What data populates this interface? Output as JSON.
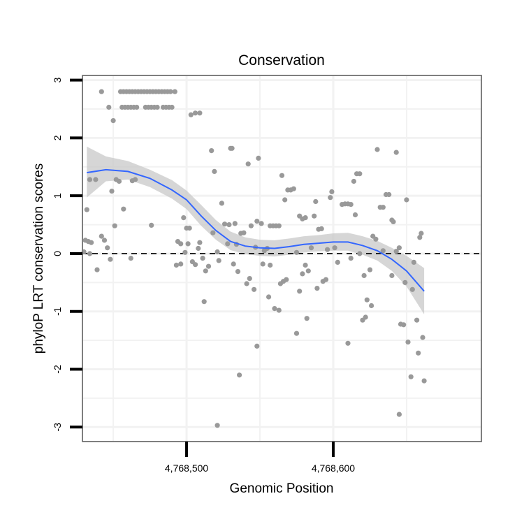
{
  "chart_data": {
    "type": "scatter",
    "title": "Conservation",
    "xlabel": "Genomic Position",
    "ylabel": "phyloP LRT conservation scores",
    "xlim": [
      4768429,
      4768701
    ],
    "ylim": [
      -3.25,
      3.08
    ],
    "xticks": [
      4768500,
      4768600
    ],
    "xtick_labels": [
      "4,768,500",
      "4,768,600"
    ],
    "yticks": [
      3,
      2,
      1,
      0,
      -1,
      -2,
      -3
    ],
    "ytick_labels": [
      "3",
      "2",
      "1",
      "0",
      "-1",
      "-2",
      "-3"
    ],
    "minor_xticks": [
      4768450,
      4768550,
      4768650
    ],
    "minor_yticks": [
      2.5,
      1.5,
      0.5,
      -0.5,
      -1.5,
      -2.5
    ],
    "grid": true,
    "reference_line": {
      "y": 0,
      "style": "dashed"
    },
    "colors": {
      "points": "#999999",
      "smooth": "#3366FF",
      "band": "#C8C8C8",
      "panel_border": "#7f7f7f",
      "grid": "#f2f2f2"
    },
    "points": [
      {
        "x": 4768442,
        "y": 2.8
      },
      {
        "x": 4768447,
        "y": 2.53
      },
      {
        "x": 4768450,
        "y": 2.3
      },
      {
        "x": 4768455,
        "y": 2.8
      },
      {
        "x": 4768457,
        "y": 2.8
      },
      {
        "x": 4768459,
        "y": 2.8
      },
      {
        "x": 4768461,
        "y": 2.8
      },
      {
        "x": 4768463,
        "y": 2.8
      },
      {
        "x": 4768465,
        "y": 2.8
      },
      {
        "x": 4768467,
        "y": 2.8
      },
      {
        "x": 4768469,
        "y": 2.8
      },
      {
        "x": 4768471,
        "y": 2.8
      },
      {
        "x": 4768473,
        "y": 2.8
      },
      {
        "x": 4768475,
        "y": 2.8
      },
      {
        "x": 4768477,
        "y": 2.8
      },
      {
        "x": 4768479,
        "y": 2.8
      },
      {
        "x": 4768481,
        "y": 2.8
      },
      {
        "x": 4768483,
        "y": 2.8
      },
      {
        "x": 4768485,
        "y": 2.8
      },
      {
        "x": 4768487,
        "y": 2.8
      },
      {
        "x": 4768489,
        "y": 2.8
      },
      {
        "x": 4768492,
        "y": 2.8
      },
      {
        "x": 4768456,
        "y": 2.53
      },
      {
        "x": 4768458,
        "y": 2.53
      },
      {
        "x": 4768460,
        "y": 2.53
      },
      {
        "x": 4768462,
        "y": 2.53
      },
      {
        "x": 4768464,
        "y": 2.53
      },
      {
        "x": 4768466,
        "y": 2.53
      },
      {
        "x": 4768472,
        "y": 2.53
      },
      {
        "x": 4768474,
        "y": 2.53
      },
      {
        "x": 4768476,
        "y": 2.53
      },
      {
        "x": 4768478,
        "y": 2.53
      },
      {
        "x": 4768480,
        "y": 2.53
      },
      {
        "x": 4768484,
        "y": 2.53
      },
      {
        "x": 4768486,
        "y": 2.53
      },
      {
        "x": 4768488,
        "y": 2.53
      },
      {
        "x": 4768490,
        "y": 2.53
      },
      {
        "x": 4768503,
        "y": 2.4
      },
      {
        "x": 4768506,
        "y": 2.43
      },
      {
        "x": 4768509,
        "y": 2.43
      },
      {
        "x": 4768432,
        "y": 0.76
      },
      {
        "x": 4768434,
        "y": 1.28
      },
      {
        "x": 4768438,
        "y": 1.28
      },
      {
        "x": 4768452,
        "y": 1.28
      },
      {
        "x": 4768454,
        "y": 1.25
      },
      {
        "x": 4768457,
        "y": 0.77
      },
      {
        "x": 4768463,
        "y": 1.26
      },
      {
        "x": 4768465,
        "y": 1.28
      },
      {
        "x": 4768449,
        "y": 1.08
      },
      {
        "x": 4768431,
        "y": 0.23
      },
      {
        "x": 4768433,
        "y": 0.21
      },
      {
        "x": 4768435,
        "y": 0.19
      },
      {
        "x": 4768430,
        "y": 0.03
      },
      {
        "x": 4768434,
        "y": 0.0
      },
      {
        "x": 4768439,
        "y": -0.28
      },
      {
        "x": 4768442,
        "y": 0.3
      },
      {
        "x": 4768444,
        "y": 0.23
      },
      {
        "x": 4768446,
        "y": 0.1
      },
      {
        "x": 4768448,
        "y": -0.1
      },
      {
        "x": 4768451,
        "y": 0.48
      },
      {
        "x": 4768462,
        "y": -0.08
      },
      {
        "x": 4768476,
        "y": 0.49
      },
      {
        "x": 4768494,
        "y": 0.21
      },
      {
        "x": 4768496,
        "y": 0.17
      },
      {
        "x": 4768498,
        "y": 0.62
      },
      {
        "x": 4768500,
        "y": 0.44
      },
      {
        "x": 4768501,
        "y": 0.17
      },
      {
        "x": 4768502,
        "y": 0.44
      },
      {
        "x": 4768499,
        "y": 0.02
      },
      {
        "x": 4768493,
        "y": -0.2
      },
      {
        "x": 4768496,
        "y": -0.18
      },
      {
        "x": 4768504,
        "y": -0.14
      },
      {
        "x": 4768506,
        "y": -0.19
      },
      {
        "x": 4768508,
        "y": 0.09
      },
      {
        "x": 4768509,
        "y": 0.19
      },
      {
        "x": 4768511,
        "y": -0.08
      },
      {
        "x": 4768513,
        "y": -0.3
      },
      {
        "x": 4768515,
        "y": -0.22
      },
      {
        "x": 4768512,
        "y": -0.83
      },
      {
        "x": 4768517,
        "y": 1.78
      },
      {
        "x": 4768519,
        "y": 1.42
      },
      {
        "x": 4768518,
        "y": 0.36
      },
      {
        "x": 4768521,
        "y": 0.03
      },
      {
        "x": 4768522,
        "y": -0.12
      },
      {
        "x": 4768524,
        "y": 0.87
      },
      {
        "x": 4768526,
        "y": 0.51
      },
      {
        "x": 4768528,
        "y": 0.17
      },
      {
        "x": 4768529,
        "y": 0.5
      },
      {
        "x": 4768530,
        "y": 1.82
      },
      {
        "x": 4768531,
        "y": 1.82
      },
      {
        "x": 4768533,
        "y": 0.52
      },
      {
        "x": 4768534,
        "y": 0.16
      },
      {
        "x": 4768535,
        "y": -0.31
      },
      {
        "x": 4768537,
        "y": 0.35
      },
      {
        "x": 4768539,
        "y": 0.36
      },
      {
        "x": 4768541,
        "y": -0.52
      },
      {
        "x": 4768542,
        "y": 1.55
      },
      {
        "x": 4768543,
        "y": -0.43
      },
      {
        "x": 4768544,
        "y": 0.48
      },
      {
        "x": 4768546,
        "y": -0.62
      },
      {
        "x": 4768547,
        "y": 0.11
      },
      {
        "x": 4768548,
        "y": 0.56
      },
      {
        "x": 4768549,
        "y": 1.65
      },
      {
        "x": 4768551,
        "y": 0.52
      },
      {
        "x": 4768552,
        "y": -0.18
      },
      {
        "x": 4768553,
        "y": 0.05
      },
      {
        "x": 4768555,
        "y": 0.09
      },
      {
        "x": 4768557,
        "y": 0.48
      },
      {
        "x": 4768559,
        "y": 0.48
      },
      {
        "x": 4768561,
        "y": 0.48
      },
      {
        "x": 4768563,
        "y": 0.48
      },
      {
        "x": 4768565,
        "y": 1.35
      },
      {
        "x": 4768567,
        "y": 0.93
      },
      {
        "x": 4768569,
        "y": 1.1
      },
      {
        "x": 4768571,
        "y": 1.1
      },
      {
        "x": 4768573,
        "y": 1.12
      },
      {
        "x": 4768564,
        "y": -0.52
      },
      {
        "x": 4768566,
        "y": -0.48
      },
      {
        "x": 4768568,
        "y": -0.45
      },
      {
        "x": 4768560,
        "y": -0.95
      },
      {
        "x": 4768563,
        "y": -0.98
      },
      {
        "x": 4768556,
        "y": -0.75
      },
      {
        "x": 4768575,
        "y": 0.02
      },
      {
        "x": 4768577,
        "y": 0.65
      },
      {
        "x": 4768579,
        "y": 0.6
      },
      {
        "x": 4768581,
        "y": 0.62
      },
      {
        "x": 4768579,
        "y": -0.35
      },
      {
        "x": 4768581,
        "y": -0.2
      },
      {
        "x": 4768583,
        "y": -0.3
      },
      {
        "x": 4768585,
        "y": 0.1
      },
      {
        "x": 4768587,
        "y": 0.65
      },
      {
        "x": 4768588,
        "y": 0.9
      },
      {
        "x": 4768577,
        "y": -0.65
      },
      {
        "x": 4768575,
        "y": -1.38
      },
      {
        "x": 4768582,
        "y": -1.12
      },
      {
        "x": 4768589,
        "y": -0.6
      },
      {
        "x": 4768590,
        "y": 0.42
      },
      {
        "x": 4768592,
        "y": 0.43
      },
      {
        "x": 4768593,
        "y": -0.48
      },
      {
        "x": 4768595,
        "y": -0.45
      },
      {
        "x": 4768596,
        "y": 0.07
      },
      {
        "x": 4768598,
        "y": 0.97
      },
      {
        "x": 4768599,
        "y": 1.07
      },
      {
        "x": 4768601,
        "y": 0.1
      },
      {
        "x": 4768603,
        "y": -0.15
      },
      {
        "x": 4768606,
        "y": 0.85
      },
      {
        "x": 4768608,
        "y": 0.86
      },
      {
        "x": 4768610,
        "y": 0.86
      },
      {
        "x": 4768612,
        "y": 0.85
      },
      {
        "x": 4768614,
        "y": 1.25
      },
      {
        "x": 4768615,
        "y": 0.67
      },
      {
        "x": 4768616,
        "y": 1.38
      },
      {
        "x": 4768618,
        "y": 1.38
      },
      {
        "x": 4768610,
        "y": -1.55
      },
      {
        "x": 4768612,
        "y": -0.08
      },
      {
        "x": 4768618,
        "y": 0.0
      },
      {
        "x": 4768620,
        "y": -1.15
      },
      {
        "x": 4768622,
        "y": -1.1
      },
      {
        "x": 4768621,
        "y": -0.38
      },
      {
        "x": 4768623,
        "y": -0.8
      },
      {
        "x": 4768625,
        "y": -0.28
      },
      {
        "x": 4768626,
        "y": -0.9
      },
      {
        "x": 4768627,
        "y": 0.3
      },
      {
        "x": 4768629,
        "y": 0.25
      },
      {
        "x": 4768630,
        "y": 1.8
      },
      {
        "x": 4768632,
        "y": 0.8
      },
      {
        "x": 4768634,
        "y": 0.8
      },
      {
        "x": 4768636,
        "y": 1.02
      },
      {
        "x": 4768638,
        "y": 1.02
      },
      {
        "x": 4768640,
        "y": 0.58
      },
      {
        "x": 4768641,
        "y": 0.55
      },
      {
        "x": 4768643,
        "y": 1.75
      },
      {
        "x": 4768645,
        "y": 0.1
      },
      {
        "x": 4768634,
        "y": 0.05
      },
      {
        "x": 4768640,
        "y": -0.38
      },
      {
        "x": 4768643,
        "y": 0.04
      },
      {
        "x": 4768646,
        "y": -1.22
      },
      {
        "x": 4768648,
        "y": -1.23
      },
      {
        "x": 4768649,
        "y": -0.5
      },
      {
        "x": 4768650,
        "y": 0.93
      },
      {
        "x": 4768651,
        "y": -1.53
      },
      {
        "x": 4768653,
        "y": -2.13
      },
      {
        "x": 4768654,
        "y": -0.62
      },
      {
        "x": 4768655,
        "y": -0.15
      },
      {
        "x": 4768657,
        "y": -1.15
      },
      {
        "x": 4768658,
        "y": -1.72
      },
      {
        "x": 4768659,
        "y": 0.28
      },
      {
        "x": 4768660,
        "y": 0.35
      },
      {
        "x": 4768661,
        "y": -1.45
      },
      {
        "x": 4768662,
        "y": -2.2
      },
      {
        "x": 4768645,
        "y": -2.78
      },
      {
        "x": 4768521,
        "y": -2.97
      },
      {
        "x": 4768536,
        "y": -2.1
      },
      {
        "x": 4768548,
        "y": -1.6
      },
      {
        "x": 4768532,
        "y": -0.18
      },
      {
        "x": 4768557,
        "y": -0.2
      }
    ],
    "smooth": [
      {
        "x": 4768432,
        "y": 1.4,
        "lo": 0.97,
        "hi": 1.85
      },
      {
        "x": 4768445,
        "y": 1.45,
        "lo": 1.25,
        "hi": 1.68
      },
      {
        "x": 4768460,
        "y": 1.42,
        "lo": 1.28,
        "hi": 1.6
      },
      {
        "x": 4768475,
        "y": 1.3,
        "lo": 1.15,
        "hi": 1.45
      },
      {
        "x": 4768490,
        "y": 1.1,
        "lo": 0.95,
        "hi": 1.27
      },
      {
        "x": 4768500,
        "y": 0.93,
        "lo": 0.77,
        "hi": 1.09
      },
      {
        "x": 4768510,
        "y": 0.65,
        "lo": 0.48,
        "hi": 0.84
      },
      {
        "x": 4768520,
        "y": 0.4,
        "lo": 0.24,
        "hi": 0.58
      },
      {
        "x": 4768530,
        "y": 0.21,
        "lo": 0.06,
        "hi": 0.38
      },
      {
        "x": 4768540,
        "y": 0.13,
        "lo": -0.01,
        "hi": 0.28
      },
      {
        "x": 4768550,
        "y": 0.1,
        "lo": -0.04,
        "hi": 0.24
      },
      {
        "x": 4768560,
        "y": 0.09,
        "lo": -0.05,
        "hi": 0.23
      },
      {
        "x": 4768570,
        "y": 0.12,
        "lo": -0.02,
        "hi": 0.26
      },
      {
        "x": 4768580,
        "y": 0.16,
        "lo": 0.02,
        "hi": 0.3
      },
      {
        "x": 4768590,
        "y": 0.18,
        "lo": 0.04,
        "hi": 0.32
      },
      {
        "x": 4768600,
        "y": 0.2,
        "lo": 0.05,
        "hi": 0.35
      },
      {
        "x": 4768610,
        "y": 0.2,
        "lo": 0.05,
        "hi": 0.36
      },
      {
        "x": 4768620,
        "y": 0.14,
        "lo": -0.02,
        "hi": 0.3
      },
      {
        "x": 4768630,
        "y": 0.05,
        "lo": -0.12,
        "hi": 0.22
      },
      {
        "x": 4768640,
        "y": -0.1,
        "lo": -0.3,
        "hi": 0.1
      },
      {
        "x": 4768650,
        "y": -0.3,
        "lo": -0.57,
        "hi": -0.04
      },
      {
        "x": 4768662,
        "y": -0.65,
        "lo": -1.05,
        "hi": -0.25
      }
    ]
  }
}
